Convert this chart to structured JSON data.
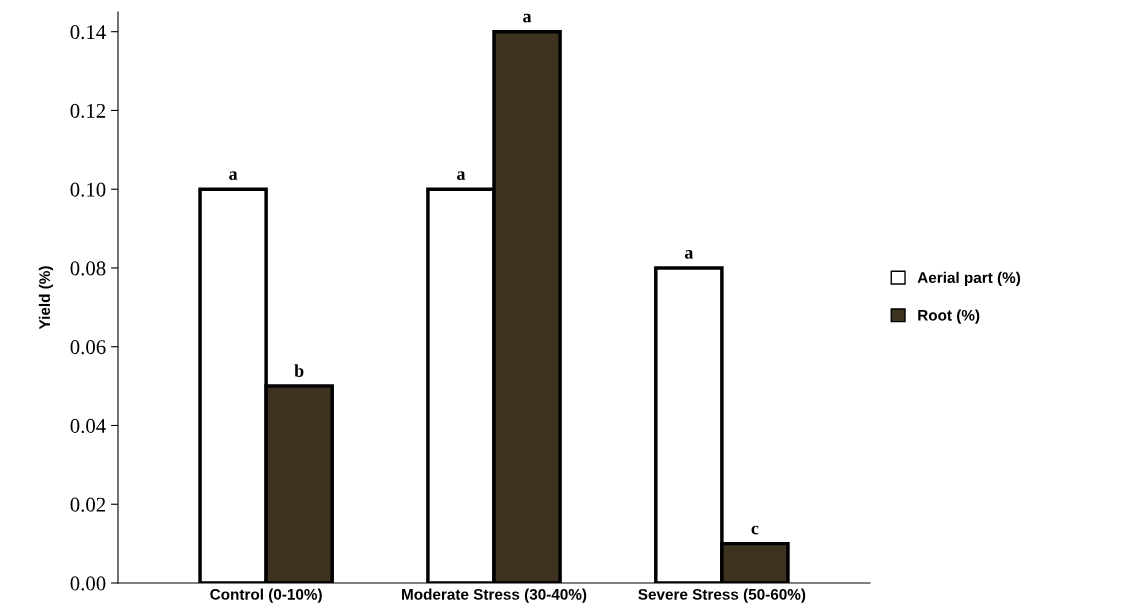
{
  "chart_data": {
    "type": "bar",
    "ylabel": "Yield (%)",
    "categories": [
      "Control (0-10%)",
      "Moderate Stress (30-40%)",
      "Severe Stress (50-60%)"
    ],
    "series": [
      {
        "name": "Aerial part (%)",
        "color": "#ffffff",
        "values": [
          0.1,
          0.1,
          0.08
        ],
        "value_labels": [
          "a",
          "a",
          "a"
        ]
      },
      {
        "name": "Root (%)",
        "color": "#3d3320",
        "values": [
          0.05,
          0.14,
          0.01
        ],
        "value_labels": [
          "b",
          "a",
          "c"
        ]
      }
    ],
    "ylim": [
      0,
      0.145
    ],
    "yticks": [
      {
        "value": 0,
        "label": "0.00"
      },
      {
        "value": 0.02,
        "label": "0.02"
      },
      {
        "value": 0.04,
        "label": "0.04"
      },
      {
        "value": 0.06,
        "label": "0.06"
      },
      {
        "value": 0.08,
        "label": "0.08"
      },
      {
        "value": 0.1,
        "label": "0.10"
      },
      {
        "value": 0.12,
        "label": "0.12"
      },
      {
        "value": 0.14,
        "label": "0.14"
      }
    ],
    "grid": false,
    "legend": "right"
  }
}
